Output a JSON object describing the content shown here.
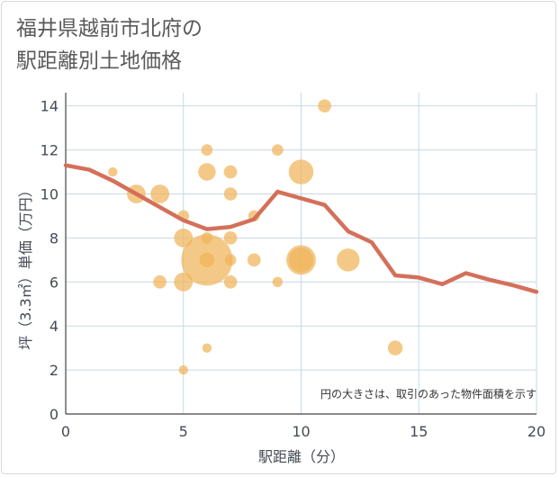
{
  "title_lines": [
    "福井県越前市北府の",
    "駅距離別土地価格"
  ],
  "chart_data": {
    "type": "scatter",
    "title": "福井県越前市北府の駅距離別土地価格",
    "xlabel": "駅距離（分）",
    "ylabel": "坪（3.3㎡）単価（万円）",
    "xlim": [
      0,
      20
    ],
    "ylim": [
      0,
      14.6
    ],
    "xticks": [
      0,
      5,
      10,
      15,
      20
    ],
    "yticks": [
      0,
      2,
      4,
      6,
      8,
      10,
      12,
      14
    ],
    "grid": true,
    "annotation": "円の大きさは、取引のあった物件面積を示す",
    "bubble_color": "#f0b45a",
    "line_color": "#d4705a",
    "bubbles": [
      {
        "x": 2,
        "y": 11,
        "size": 1
      },
      {
        "x": 3,
        "y": 10,
        "size": 4
      },
      {
        "x": 4,
        "y": 10,
        "size": 4
      },
      {
        "x": 4,
        "y": 6,
        "size": 2
      },
      {
        "x": 5,
        "y": 9,
        "size": 1.5
      },
      {
        "x": 5,
        "y": 8,
        "size": 4
      },
      {
        "x": 5,
        "y": 6,
        "size": 4
      },
      {
        "x": 5,
        "y": 2,
        "size": 1
      },
      {
        "x": 6,
        "y": 12,
        "size": 1.5
      },
      {
        "x": 6,
        "y": 11,
        "size": 3.5
      },
      {
        "x": 6,
        "y": 8,
        "size": 1.5
      },
      {
        "x": 6,
        "y": 7,
        "size": 30
      },
      {
        "x": 6,
        "y": 7,
        "size": 2.5
      },
      {
        "x": 6,
        "y": 3,
        "size": 1
      },
      {
        "x": 7,
        "y": 11,
        "size": 2
      },
      {
        "x": 7,
        "y": 10,
        "size": 2
      },
      {
        "x": 7,
        "y": 8,
        "size": 2
      },
      {
        "x": 7,
        "y": 7,
        "size": 1.5
      },
      {
        "x": 7,
        "y": 6,
        "size": 2
      },
      {
        "x": 8,
        "y": 9,
        "size": 1.5
      },
      {
        "x": 8,
        "y": 7,
        "size": 2
      },
      {
        "x": 9,
        "y": 12,
        "size": 1.5
      },
      {
        "x": 9,
        "y": 6,
        "size": 1.2
      },
      {
        "x": 10,
        "y": 11,
        "size": 7
      },
      {
        "x": 10,
        "y": 7,
        "size": 10
      },
      {
        "x": 10,
        "y": 7,
        "size": 7
      },
      {
        "x": 11,
        "y": 14,
        "size": 2
      },
      {
        "x": 12,
        "y": 7,
        "size": 6
      },
      {
        "x": 14,
        "y": 3,
        "size": 2.5
      }
    ],
    "line": {
      "x": [
        0,
        1,
        2,
        3,
        4,
        5,
        6,
        7,
        8,
        9,
        10,
        11,
        12,
        13,
        14,
        15,
        16,
        17,
        18,
        19,
        20
      ],
      "y": [
        11.3,
        11.1,
        10.6,
        10.0,
        9.4,
        8.8,
        8.4,
        8.5,
        8.85,
        10.1,
        9.8,
        9.5,
        8.3,
        7.8,
        6.3,
        6.2,
        5.9,
        6.4,
        6.1,
        5.85,
        5.55
      ]
    }
  }
}
